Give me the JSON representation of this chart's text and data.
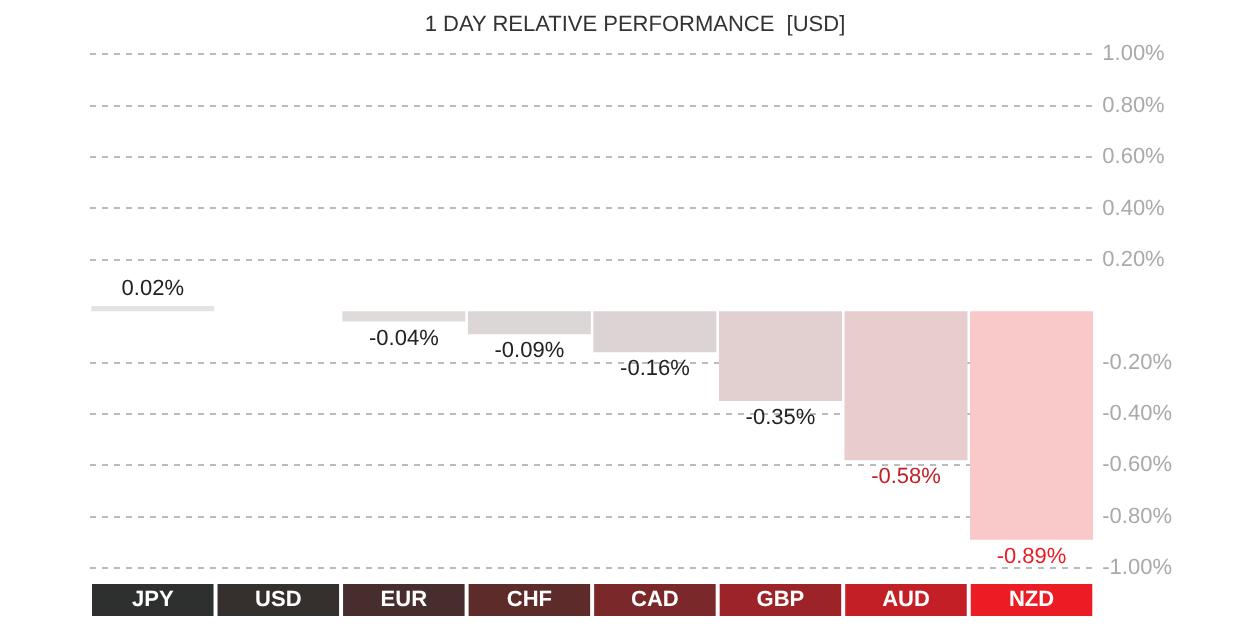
{
  "chart_data": {
    "type": "bar",
    "title": "1 DAY RELATIVE PERFORMANCE  [USD]",
    "categories": [
      "JPY",
      "USD",
      "EUR",
      "CHF",
      "CAD",
      "GBP",
      "AUD",
      "NZD"
    ],
    "values": [
      0.02,
      0,
      -0.04,
      -0.09,
      -0.16,
      -0.35,
      -0.58,
      -0.89
    ],
    "colors": [
      "#e4e4e4",
      "#e4e4e4",
      "#dfdbdb",
      "#ddd6d6",
      "#dcd4d4",
      "#e2d0d1",
      "#e8cdce",
      "#f9c8c9"
    ],
    "value_labels": [
      "0.02%",
      null,
      "-0.04%",
      "-0.09%",
      "-0.16%",
      "-0.35%",
      "-0.58%",
      "-0.89%"
    ],
    "ylim": [
      -1,
      1
    ],
    "yticks": [
      {
        "value": -1,
        "label": "-1.00%"
      },
      {
        "value": -0.8,
        "label": "-0.80%"
      },
      {
        "value": -0.6,
        "label": "-0.60%"
      },
      {
        "value": -0.4,
        "label": "-0.40%"
      },
      {
        "value": -0.2,
        "label": "-0.20%"
      },
      {
        "value": 0.2,
        "label": "0.20%"
      },
      {
        "value": 0.4,
        "label": "0.40%"
      },
      {
        "value": 0.6,
        "label": "0.60%"
      },
      {
        "value": 0.8,
        "label": "0.80%"
      },
      {
        "value": 1,
        "label": "1.00%"
      }
    ],
    "grid": "y"
  }
}
